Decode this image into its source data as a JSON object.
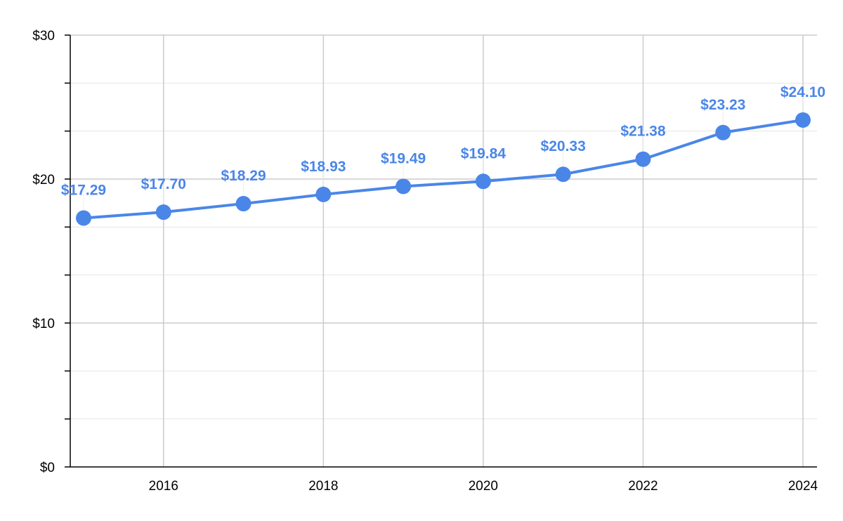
{
  "chart_data": {
    "type": "line",
    "x": [
      2015,
      2016,
      2017,
      2018,
      2019,
      2020,
      2021,
      2022,
      2023,
      2024
    ],
    "series": [
      {
        "values": [
          17.29,
          17.7,
          18.29,
          18.93,
          19.49,
          19.84,
          20.33,
          21.38,
          23.23,
          24.1
        ],
        "labels": [
          "$17.29",
          "$17.70",
          "$18.29",
          "$18.93",
          "$19.49",
          "$19.84",
          "$20.33",
          "$21.38",
          "$23.23",
          "$24.10"
        ],
        "color": "#4a86e8"
      }
    ],
    "xlim": [
      2015,
      2024
    ],
    "ylim": [
      0,
      30
    ],
    "y_ticks": [
      0,
      10,
      20,
      30
    ],
    "y_tick_labels": [
      "$0",
      "$10",
      "$20",
      "$30"
    ],
    "x_ticks": [
      2016,
      2018,
      2020,
      2022,
      2024
    ],
    "x_tick_labels": [
      "2016",
      "2018",
      "2020",
      "2022",
      "2024"
    ],
    "grid": true,
    "legend": "none"
  }
}
